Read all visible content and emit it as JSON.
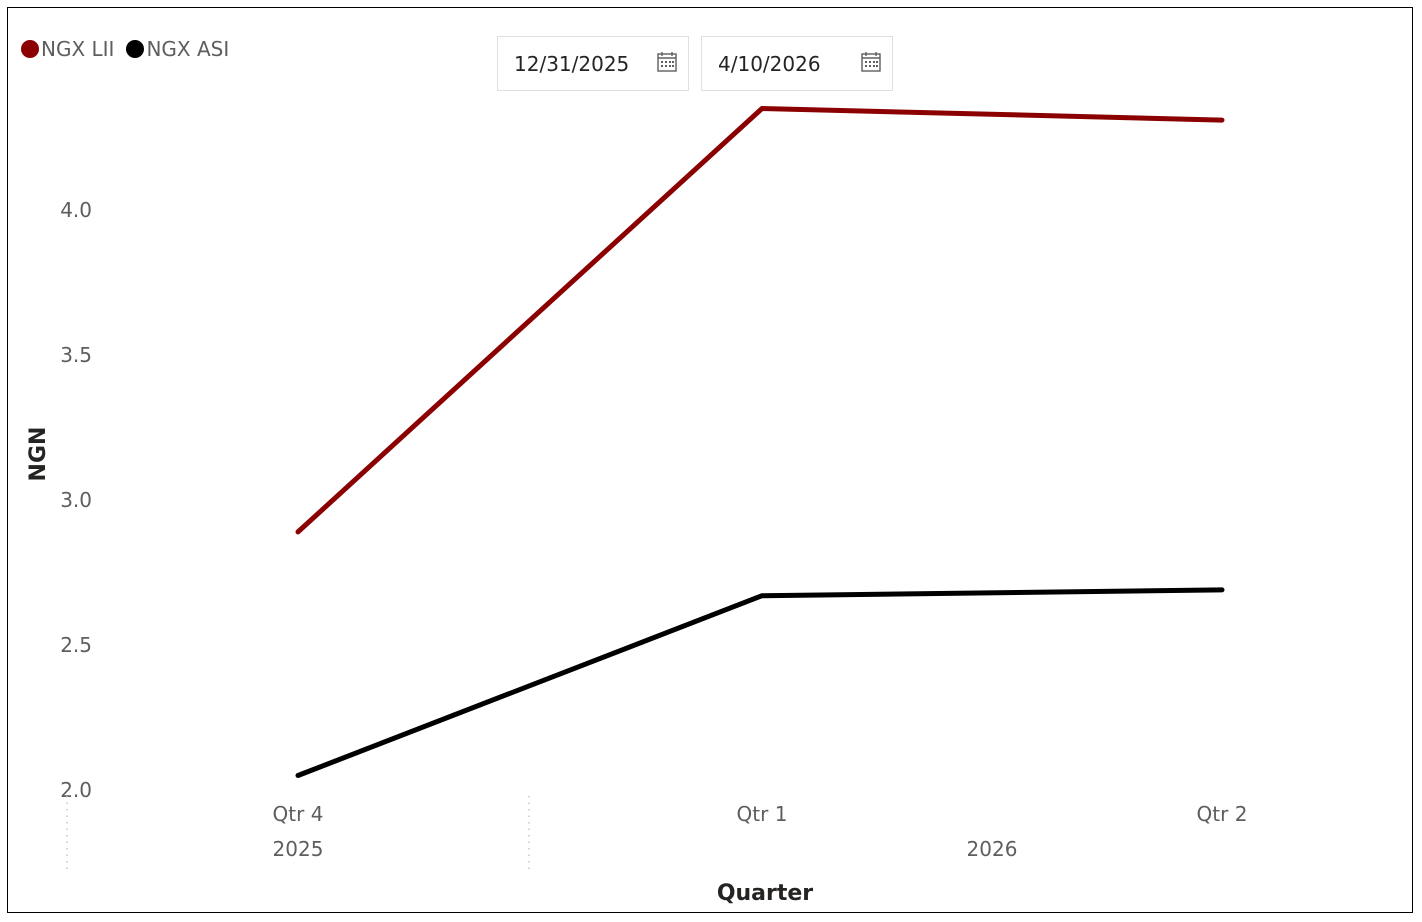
{
  "legend": {
    "items": [
      {
        "label": "NGX LII",
        "color": "#8B0000"
      },
      {
        "label": "NGX ASI",
        "color": "#000000"
      }
    ]
  },
  "date_slicer": {
    "start": "12/31/2025",
    "end": "4/10/2026",
    "icon": "calendar-icon"
  },
  "chart_data": {
    "type": "line",
    "xlabel": "Quarter",
    "ylabel": "NGN",
    "categories": [
      "Qtr 4",
      "Qtr 1",
      "Qtr 2"
    ],
    "category_groups": [
      {
        "label": "2025",
        "span": [
          0,
          0
        ]
      },
      {
        "label": "2026",
        "span": [
          1,
          2
        ]
      }
    ],
    "ylim": [
      2.0,
      4.35
    ],
    "yticks": [
      "2.0",
      "2.5",
      "3.0",
      "3.5",
      "4.0"
    ],
    "ytick_values": [
      2.0,
      2.5,
      3.0,
      3.5,
      4.0
    ],
    "series": [
      {
        "name": "NGX LII",
        "color": "#8B0000",
        "values": [
          2.89,
          4.35,
          4.31
        ]
      },
      {
        "name": "NGX ASI",
        "color": "#000000",
        "values": [
          2.05,
          2.67,
          2.69
        ]
      }
    ],
    "grid": false
  }
}
